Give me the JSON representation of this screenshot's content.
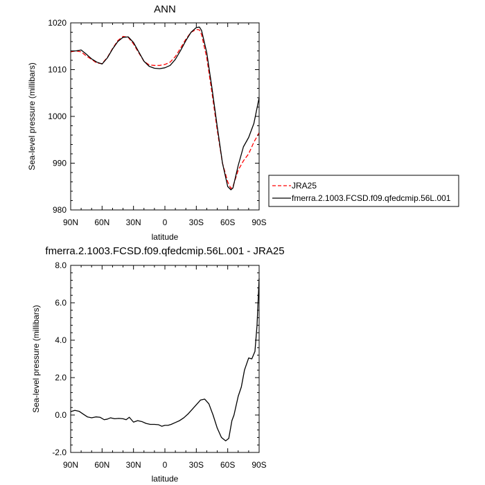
{
  "figure": {
    "background": "#ffffff"
  },
  "chart_data": [
    {
      "type": "line",
      "title": "ANN",
      "xlabel": "latitude",
      "ylabel": "Sea-level pressure (millibars)",
      "xlim": [
        90,
        -90
      ],
      "ylim": [
        980,
        1020
      ],
      "x_ticks": [
        90,
        60,
        30,
        0,
        -30,
        -60,
        -90
      ],
      "x_tick_labels": [
        "90N",
        "60N",
        "30N",
        "0",
        "30S",
        "60S",
        "90S"
      ],
      "y_ticks": [
        980,
        990,
        1000,
        1010,
        1020
      ],
      "y_tick_labels": [
        "980",
        "990",
        "1000",
        "1010",
        "1020"
      ],
      "grid": false,
      "legend": {
        "placement": "right-outside",
        "entries": [
          "JRA25",
          "fmerra.2.1003.FCSD.f09.qfedcmip.56L.001"
        ]
      },
      "series": [
        {
          "name": "JRA25",
          "color": "#ff0000",
          "dash": "dashed",
          "x": [
            90,
            85,
            80,
            75,
            70,
            65,
            60,
            55,
            50,
            45,
            40,
            35,
            30,
            25,
            20,
            15,
            10,
            5,
            0,
            -5,
            -10,
            -15,
            -20,
            -25,
            -30,
            -33,
            -35,
            -40,
            -45,
            -50,
            -55,
            -60,
            -63,
            -65,
            -70,
            -75,
            -80,
            -85,
            -90
          ],
          "y": [
            1013.8,
            1014.0,
            1013.8,
            1012.9,
            1012.2,
            1011.4,
            1011.3,
            1012.6,
            1014.5,
            1016.2,
            1017.1,
            1016.9,
            1015.5,
            1013.6,
            1011.8,
            1011.0,
            1010.9,
            1010.9,
            1011.1,
            1011.6,
            1012.8,
            1014.6,
            1016.5,
            1018.0,
            1018.6,
            1018.5,
            1017.5,
            1012.5,
            1005.0,
            997.0,
            990.0,
            986.0,
            984.6,
            985.0,
            988.5,
            990.5,
            992.0,
            994.5,
            996.5
          ]
        },
        {
          "name": "fmerra.2.1003.FCSD.f09.qfedcmip.56L.001",
          "color": "#000000",
          "dash": "solid",
          "x": [
            90,
            85,
            80,
            75,
            70,
            65,
            60,
            55,
            50,
            45,
            40,
            35,
            30,
            25,
            20,
            15,
            10,
            5,
            0,
            -5,
            -10,
            -15,
            -20,
            -25,
            -30,
            -33,
            -35,
            -40,
            -45,
            -50,
            -55,
            -60,
            -63,
            -65,
            -70,
            -75,
            -80,
            -85,
            -90
          ],
          "y": [
            1014.0,
            1014.0,
            1014.2,
            1013.3,
            1012.3,
            1011.6,
            1011.2,
            1012.5,
            1014.4,
            1016.0,
            1016.9,
            1017.0,
            1015.8,
            1013.8,
            1011.8,
            1010.7,
            1010.3,
            1010.2,
            1010.4,
            1010.9,
            1012.2,
            1014.1,
            1016.2,
            1018.0,
            1019.0,
            1019.1,
            1018.4,
            1013.6,
            1006.0,
            997.8,
            990.0,
            985.0,
            984.3,
            984.7,
            989.5,
            993.5,
            995.5,
            998.5,
            1004.0
          ]
        }
      ]
    },
    {
      "type": "line",
      "title": "fmerra.2.1003.FCSD.f09.qfedcmip.56L.001 - JRA25",
      "xlabel": "latitude",
      "ylabel": "Sea-level pressure (millibars)",
      "xlim": [
        90,
        -90
      ],
      "ylim": [
        -2.0,
        8.0
      ],
      "x_ticks": [
        90,
        60,
        30,
        0,
        -30,
        -60,
        -90
      ],
      "x_tick_labels": [
        "90N",
        "60N",
        "30N",
        "0",
        "30S",
        "60S",
        "90S"
      ],
      "y_ticks": [
        -2.0,
        0.0,
        2.0,
        4.0,
        6.0,
        8.0
      ],
      "y_tick_labels": [
        "-2.0",
        "0.0",
        "2.0",
        "4.0",
        "6.0",
        "8.0"
      ],
      "grid": false,
      "series": [
        {
          "color": "#000000",
          "dash": "solid",
          "x": [
            90,
            86,
            82,
            78,
            74,
            70,
            66,
            62,
            58,
            55,
            52,
            48,
            44,
            40,
            37,
            34,
            30,
            26,
            22,
            18,
            14,
            10,
            6,
            3,
            0,
            -3,
            -6,
            -10,
            -14,
            -18,
            -22,
            -26,
            -30,
            -34,
            -38,
            -42,
            -46,
            -50,
            -54,
            -58,
            -61,
            -64,
            -66,
            -70,
            -73,
            -76,
            -80,
            -83,
            -86,
            -88,
            -90
          ],
          "y": [
            0.18,
            0.25,
            0.2,
            0.05,
            -0.1,
            -0.15,
            -0.1,
            -0.12,
            -0.25,
            -0.22,
            -0.15,
            -0.2,
            -0.18,
            -0.2,
            -0.25,
            -0.12,
            -0.38,
            -0.3,
            -0.35,
            -0.45,
            -0.5,
            -0.5,
            -0.52,
            -0.6,
            -0.55,
            -0.55,
            -0.5,
            -0.4,
            -0.3,
            -0.15,
            0.05,
            0.3,
            0.55,
            0.8,
            0.85,
            0.6,
            0.0,
            -0.7,
            -1.2,
            -1.38,
            -1.25,
            -0.3,
            0.0,
            1.0,
            1.5,
            2.4,
            3.05,
            3.0,
            3.4,
            4.8,
            7.3
          ]
        }
      ]
    }
  ]
}
